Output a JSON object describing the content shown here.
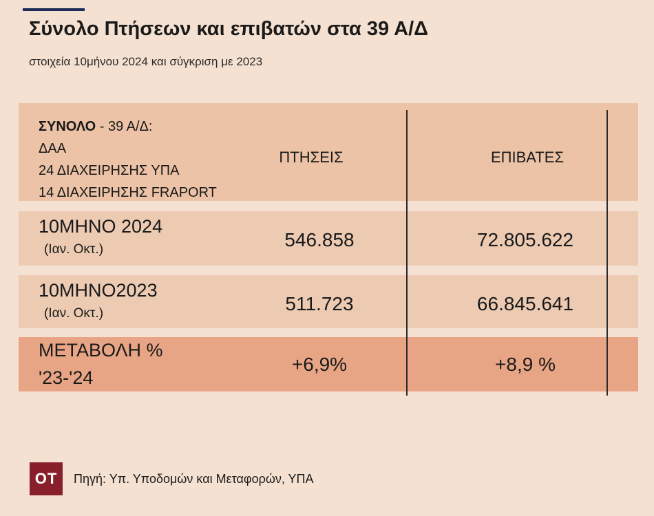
{
  "title": "Σύνολο Πτήσεων και επιβατών στα 39 Α/Δ",
  "subtitle": "στοιχεία 10μήνου 2024 και σύγκριση με 2023",
  "header": {
    "line1_bold": "ΣΥΝΟΛΟ",
    "line1_rest": " - 39 Α/Δ:",
    "line2": "ΔΑΑ",
    "line3": "24 ΔΙΑΧΕΙΡΗΣΗΣ ΥΠΑ",
    "line4": "14 ΔΙΑΧΕΙΡΗΣΗΣ FRAPORT",
    "col_flights": "ΠΤΗΣΕΙΣ",
    "col_passengers": "ΕΠΙΒΑΤΕΣ"
  },
  "rows": [
    {
      "label": "10ΜΗΝΟ 2024",
      "sublabel": "(Ιαν. Οκτ.)",
      "flights": "546.858",
      "passengers": "72.805.622"
    },
    {
      "label": "10ΜΗΝΟ2023",
      "sublabel": "(Ιαν. Οκτ.)",
      "flights": "511.723",
      "passengers": "66.845.641"
    },
    {
      "label": "ΜΕΤΑΒΟΛΗ %",
      "sublabel": "'23-'24",
      "flights": "+6,9%",
      "passengers": "+8,9 %"
    }
  ],
  "logo_text": "ΟΤ",
  "source": "Πηγή: Υπ. Υποδομών και Μεταφορών, ΥΠΑ",
  "colors": {
    "background": "#f5e1d1",
    "header_row": "#ecc3a6",
    "data_row": "#edcbb3",
    "change_row": "#e7a585",
    "logo": "#8a1f2c",
    "accent": "#1e2a5a"
  }
}
